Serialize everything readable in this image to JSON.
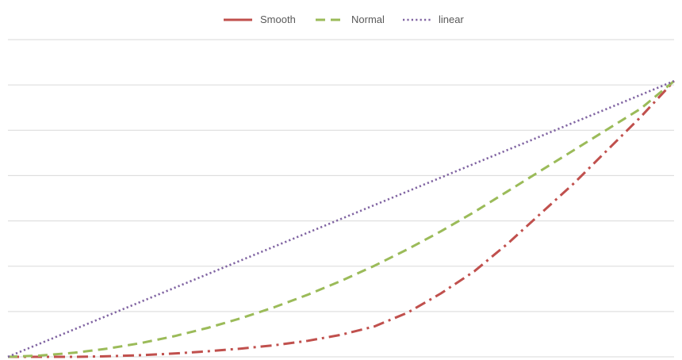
{
  "chart_data": {
    "type": "line",
    "title": "",
    "xlabel": "",
    "ylabel": "",
    "x": [
      0,
      0.05,
      0.1,
      0.15,
      0.2,
      0.25,
      0.3,
      0.35,
      0.4,
      0.45,
      0.5,
      0.55,
      0.6,
      0.65,
      0.7,
      0.75,
      0.8,
      0.85,
      0.9,
      0.95,
      1.0
    ],
    "xlim": [
      0,
      1
    ],
    "ylim": [
      0,
      1.15
    ],
    "grid": true,
    "legend": "top-center",
    "series": [
      {
        "name": "Smooth",
        "color": "#c0504d",
        "style": "dash-dot",
        "values": [
          0,
          0,
          0,
          0.002,
          0.006,
          0.012,
          0.02,
          0.03,
          0.042,
          0.058,
          0.08,
          0.11,
          0.16,
          0.23,
          0.31,
          0.41,
          0.52,
          0.63,
          0.75,
          0.87,
          1.0
        ]
      },
      {
        "name": "Normal",
        "color": "#9bbb59",
        "style": "dash",
        "values": [
          0,
          0.005,
          0.015,
          0.03,
          0.05,
          0.075,
          0.105,
          0.14,
          0.18,
          0.225,
          0.275,
          0.33,
          0.39,
          0.455,
          0.525,
          0.6,
          0.675,
          0.75,
          0.825,
          0.9,
          1.0
        ]
      },
      {
        "name": "linear",
        "color": "#8064a2",
        "style": "dot",
        "values": [
          0,
          0.05,
          0.1,
          0.15,
          0.2,
          0.25,
          0.3,
          0.35,
          0.4,
          0.45,
          0.5,
          0.55,
          0.6,
          0.65,
          0.7,
          0.75,
          0.8,
          0.85,
          0.9,
          0.95,
          1.0
        ]
      }
    ]
  }
}
